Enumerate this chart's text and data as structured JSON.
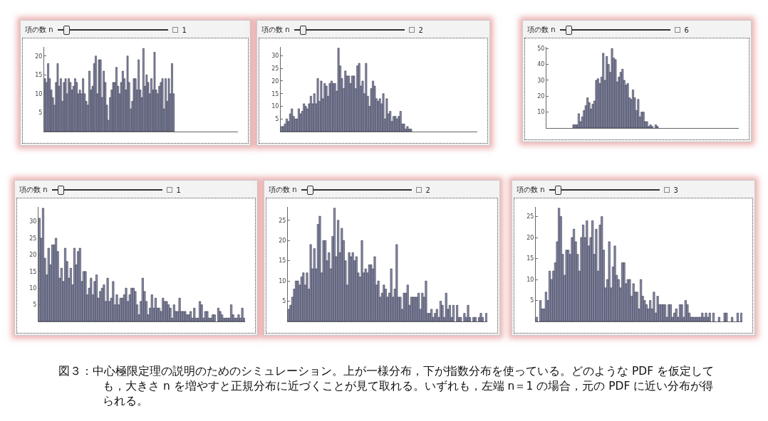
{
  "chart_data": [
    {
      "type": "bar",
      "title": "項の数 n",
      "annotations": [
        "1"
      ],
      "categories": [
        null,
        null,
        null,
        null,
        null,
        null,
        null,
        null,
        null,
        null,
        null,
        null,
        null,
        null,
        null,
        null,
        null,
        null,
        null,
        null,
        null,
        null,
        null,
        null,
        null,
        null,
        null,
        null,
        null,
        null,
        null,
        null,
        null,
        null,
        null,
        null,
        null,
        null,
        null,
        null,
        null,
        null,
        null,
        null,
        null,
        null,
        null,
        null,
        null,
        null,
        null,
        null,
        null,
        null,
        null,
        null,
        null,
        null,
        null,
        null,
        null,
        null,
        null,
        null,
        null,
        null,
        null,
        null,
        null,
        null,
        null,
        null,
        null,
        null,
        null,
        null,
        null,
        null,
        null,
        null,
        null,
        null,
        null,
        null,
        null,
        null,
        null,
        null,
        null,
        null,
        null,
        null,
        null,
        null,
        null,
        null,
        null,
        null,
        null,
        null,
        null,
        null,
        null,
        null,
        null,
        null,
        null,
        null,
        null,
        null,
        null,
        null,
        null,
        null,
        null,
        null,
        null,
        null,
        null,
        null,
        null,
        null
      ],
      "values": [
        14,
        13,
        18,
        14,
        11,
        9,
        7,
        13,
        18,
        12,
        14,
        8,
        13,
        14,
        10,
        14,
        13,
        11,
        12,
        14,
        13,
        10,
        11,
        10,
        14,
        10,
        8,
        7,
        16,
        11,
        12,
        18,
        20,
        10,
        19,
        19,
        9,
        16,
        13,
        7,
        3,
        9,
        11,
        13,
        13,
        17,
        12,
        10,
        13,
        16,
        14,
        11,
        20,
        13,
        6,
        8,
        14,
        14,
        11,
        19,
        11,
        9,
        22,
        12,
        15,
        13,
        10,
        14,
        11,
        21,
        11,
        10,
        12,
        13,
        14,
        6,
        14,
        8,
        14,
        10,
        18,
        10,
        null,
        null,
        null,
        null,
        null,
        null,
        null,
        null,
        null,
        null,
        null,
        null,
        null,
        null,
        null,
        null,
        null,
        null,
        null,
        null,
        null,
        null,
        null,
        null,
        null,
        null,
        null,
        null,
        null,
        null,
        null,
        null,
        null,
        null,
        null,
        null,
        null,
        null,
        null,
        null
      ],
      "color": "#8c90ae",
      "ylim": [
        0,
        22.4
      ],
      "yticks": [
        5,
        10,
        15,
        20
      ],
      "tick_labels": "y",
      "grid": false
    },
    {
      "type": "bar",
      "title": "項の数 n",
      "annotations": [
        "2"
      ],
      "categories": [
        null,
        null,
        null,
        null,
        null,
        null,
        null,
        null,
        null,
        null,
        null,
        null,
        null,
        null,
        null,
        null,
        null,
        null,
        null,
        null,
        null,
        null,
        null,
        null,
        null,
        null,
        null,
        null,
        null,
        null,
        null,
        null,
        null,
        null,
        null,
        null,
        null,
        null,
        null,
        null,
        null,
        null,
        null,
        null,
        null,
        null,
        null,
        null,
        null,
        null,
        null,
        null,
        null,
        null,
        null,
        null,
        null,
        null,
        null,
        null,
        null,
        null,
        null,
        null,
        null,
        null,
        null,
        null,
        null,
        null,
        null,
        null,
        null,
        null,
        null,
        null,
        null,
        null,
        null,
        null,
        null,
        null,
        null,
        null,
        null,
        null,
        null,
        null,
        null,
        null,
        null,
        null,
        null,
        null,
        null,
        null,
        null,
        null,
        null,
        null,
        null,
        null,
        null,
        null,
        null,
        null,
        null,
        null,
        null,
        null,
        null,
        null,
        null,
        null
      ],
      "values": [
        2,
        2,
        3,
        5,
        4,
        7,
        9,
        6,
        5,
        5,
        9,
        7,
        8,
        11,
        10,
        9,
        11,
        14,
        11,
        15,
        11,
        21,
        12,
        20,
        13,
        19,
        18,
        14,
        19,
        20,
        19,
        19,
        16,
        33,
        26,
        21,
        17,
        24,
        22,
        22,
        19,
        22,
        22,
        17,
        26,
        27,
        18,
        20,
        15,
        27,
        14,
        10,
        17,
        20,
        18,
        13,
        12,
        13,
        11,
        15,
        5,
        13,
        7,
        8,
        4,
        6,
        6,
        5,
        6,
        8,
        3,
        3,
        1,
        2,
        1,
        1,
        null,
        null,
        null,
        null,
        null,
        null,
        null,
        null,
        null,
        null,
        null,
        null,
        null,
        null,
        null,
        null,
        null,
        null,
        null,
        null,
        null,
        null,
        null,
        null,
        null,
        null,
        null,
        null,
        null,
        null,
        null,
        null,
        null,
        null,
        null,
        null,
        null,
        null
      ],
      "color": "#8c90ae",
      "ylim": [
        0,
        33.5
      ],
      "yticks": [
        5,
        10,
        15,
        20,
        25,
        30
      ],
      "tick_labels": "y",
      "grid": false
    },
    {
      "type": "bar",
      "title": "項の数 n",
      "annotations": [
        "6"
      ],
      "categories": [
        null,
        null,
        null,
        null,
        null,
        null,
        null,
        null,
        null,
        null,
        null,
        null,
        null,
        null,
        null,
        null,
        null,
        null,
        null,
        null,
        null,
        null,
        null,
        null,
        null,
        null,
        null,
        null,
        null,
        null,
        null,
        null,
        null,
        null,
        null,
        null,
        null,
        null,
        null,
        null,
        null,
        null,
        null,
        null,
        null,
        null,
        null,
        null,
        null,
        null,
        null,
        null,
        null,
        null,
        null,
        null,
        null,
        null,
        null,
        null,
        null,
        null,
        null,
        null,
        null,
        null,
        null,
        null,
        null,
        null,
        null,
        null,
        null,
        null,
        null,
        null,
        null,
        null,
        null,
        null,
        null,
        null,
        null,
        null,
        null,
        null,
        null,
        null,
        null,
        null,
        null,
        null,
        null,
        null,
        null,
        null,
        null,
        null,
        null,
        null,
        null,
        null,
        null,
        null,
        null,
        null,
        null,
        null,
        null,
        null
      ],
      "values": [
        null,
        null,
        null,
        null,
        null,
        null,
        null,
        null,
        null,
        null,
        null,
        null,
        null,
        null,
        null,
        2,
        2,
        2,
        9,
        4,
        7,
        11,
        14,
        19,
        16,
        12,
        15,
        17,
        30,
        31,
        28,
        32,
        47,
        30,
        45,
        40,
        35,
        50,
        44,
        43,
        29,
        32,
        35,
        37,
        30,
        27,
        28,
        19,
        18,
        24,
        19,
        11,
        18,
        7,
        10,
        10,
        4,
        4,
        1,
        2,
        1,
        0,
        2,
        1,
        null,
        null,
        null,
        null,
        null,
        null,
        null,
        null,
        null,
        null,
        null,
        null,
        null,
        null,
        null,
        null,
        null,
        null,
        null,
        null,
        null,
        null,
        null,
        null,
        null,
        null,
        null,
        null,
        null,
        null,
        null,
        null,
        null,
        null,
        null,
        null,
        null,
        null,
        null,
        null,
        null,
        null,
        null,
        null,
        null,
        null
      ],
      "color": "#8c90ae",
      "ylim": [
        0,
        51
      ],
      "yticks": [
        10,
        20,
        30,
        40,
        50
      ],
      "tick_labels": "y",
      "grid": false
    },
    {
      "type": "bar",
      "title": "項の数 n",
      "annotations": [
        "1"
      ],
      "categories": [
        null,
        null,
        null,
        null,
        null,
        null,
        null,
        null,
        null,
        null,
        null,
        null,
        null,
        null,
        null,
        null,
        null,
        null,
        null,
        null,
        null,
        null,
        null,
        null,
        null,
        null,
        null,
        null,
        null,
        null,
        null,
        null,
        null,
        null,
        null,
        null,
        null,
        null,
        null,
        null,
        null,
        null,
        null,
        null,
        null,
        null,
        null,
        null,
        null,
        null,
        null,
        null,
        null,
        null,
        null,
        null,
        null,
        null,
        null,
        null,
        null,
        null,
        null,
        null,
        null,
        null,
        null,
        null,
        null,
        null,
        null,
        null,
        null,
        null,
        null,
        null,
        null,
        null,
        null,
        null,
        null,
        null,
        null,
        null,
        null,
        null,
        null,
        null,
        null,
        null,
        null,
        null,
        null,
        null,
        null,
        null,
        null,
        null,
        null,
        null,
        null,
        null,
        null,
        null,
        null,
        null,
        null,
        null,
        null,
        null,
        null,
        null
      ],
      "values": [
        31,
        25,
        34,
        19,
        14,
        22,
        17,
        23,
        23,
        25,
        21,
        13,
        16,
        12,
        22,
        18,
        13,
        16,
        11,
        22,
        17,
        21,
        22,
        12,
        15,
        15,
        8,
        10,
        13,
        8,
        12,
        14,
        7,
        9,
        10,
        11,
        6,
        13,
        6,
        7,
        12,
        5,
        8,
        5,
        7,
        7,
        8,
        10,
        6,
        8,
        10,
        10,
        9,
        5,
        2,
        6,
        13,
        9,
        6,
        2,
        4,
        8,
        4,
        7,
        4,
        4,
        3,
        7,
        6,
        6,
        5,
        4,
        1,
        5,
        3,
        3,
        7,
        3,
        3,
        3,
        2,
        2,
        3,
        1,
        4,
        1,
        1,
        6,
        5,
        1,
        3,
        3,
        1,
        1,
        2,
        2,
        0,
        4,
        3,
        2,
        1,
        1,
        1,
        1,
        5,
        2,
        1,
        1,
        2,
        1,
        4,
        1
      ],
      "color": "#8c90ae",
      "ylim": [
        0,
        34.4
      ],
      "yticks": [
        5,
        10,
        15,
        20,
        25,
        30
      ],
      "tick_labels": "y",
      "grid": false
    },
    {
      "type": "bar",
      "title": "項の数 n",
      "annotations": [
        "2"
      ],
      "categories": [
        null,
        null,
        null,
        null,
        null,
        null,
        null,
        null,
        null,
        null,
        null,
        null,
        null,
        null,
        null,
        null,
        null,
        null,
        null,
        null,
        null,
        null,
        null,
        null,
        null,
        null,
        null,
        null,
        null,
        null,
        null,
        null,
        null,
        null,
        null,
        null,
        null,
        null,
        null,
        null,
        null,
        null,
        null,
        null,
        null,
        null,
        null,
        null,
        null,
        null,
        null,
        null,
        null,
        null,
        null,
        null,
        null,
        null,
        null,
        null,
        null,
        null,
        null,
        null,
        null,
        null,
        null,
        null,
        null,
        null,
        null,
        null,
        null,
        null,
        null,
        null,
        null,
        null,
        null,
        null,
        null,
        null,
        null,
        null,
        null,
        null,
        null,
        null,
        null,
        null,
        null,
        null,
        null,
        null,
        null,
        null,
        null,
        null,
        null,
        null,
        null,
        null,
        null,
        null,
        null,
        null,
        null,
        null,
        null
      ],
      "values": [
        3,
        4,
        6,
        8,
        10,
        10,
        9,
        11,
        12,
        9,
        12,
        8,
        19,
        13,
        18,
        13,
        24,
        26,
        12,
        20,
        20,
        15,
        17,
        13,
        21,
        28,
        16,
        25,
        17,
        23,
        20,
        15,
        9,
        17,
        16,
        17,
        15,
        16,
        12,
        11,
        20,
        12,
        13,
        12,
        14,
        14,
        13,
        16,
        9,
        10,
        6,
        7,
        9,
        8,
        6,
        7,
        13,
        6,
        8,
        19,
        6,
        6,
        3,
        7,
        7,
        9,
        4,
        6,
        6,
        6,
        6,
        7,
        3,
        7,
        6,
        10,
        2,
        2,
        3,
        1,
        2,
        3,
        1,
        5,
        4,
        1,
        7,
        3,
        4,
        1,
        4,
        0,
        4,
        1,
        1,
        0,
        2,
        1,
        4,
        1,
        0,
        1,
        1,
        0,
        1,
        2,
        1,
        0,
        2
      ],
      "color": "#8c90ae",
      "ylim": [
        0,
        28.3
      ],
      "yticks": [
        5,
        10,
        15,
        20,
        25
      ],
      "tick_labels": "y",
      "grid": false
    },
    {
      "type": "bar",
      "title": "項の数 n",
      "annotations": [
        "3",
        "図３：中心極限定理の説明のためのシミュレーション。上が一様分布，下が指数分布を使っている。どのような PDF を仮定しても，大きさ n を増やすと正規分布に近づくことが見て取れる。いずれも，左端 n＝1 の場合，元の PDF に近い分布が得られる。"
      ],
      "categories": [
        null,
        null,
        null,
        null,
        null,
        null,
        null,
        null,
        null,
        null,
        null,
        null,
        null,
        null,
        null,
        null,
        null,
        null,
        null,
        null,
        null,
        null,
        null,
        null,
        null,
        null,
        null,
        null,
        null,
        null,
        null,
        null,
        null,
        null,
        null,
        null,
        null,
        null,
        null,
        null,
        null,
        null,
        null,
        null,
        null,
        null,
        null,
        null,
        null,
        null,
        null,
        null,
        null,
        null,
        null,
        null,
        null,
        null,
        null,
        null,
        null,
        null,
        null,
        null,
        null,
        null,
        null,
        null,
        null,
        null,
        null,
        null,
        null,
        null,
        null,
        null,
        null,
        null,
        null,
        null,
        null,
        null,
        null,
        null,
        null,
        null,
        null,
        null,
        null,
        null,
        null,
        null,
        null,
        null,
        null,
        null,
        null,
        null,
        null,
        null,
        null,
        null,
        null,
        null,
        null,
        null,
        null,
        null,
        null,
        null,
        null
      ],
      "values": [
        1,
        0,
        5,
        3,
        3,
        7,
        5,
        12,
        10,
        12,
        14,
        19,
        27,
        25,
        16,
        11,
        17,
        17,
        16,
        20,
        22,
        19,
        16,
        12,
        20,
        23,
        20,
        24,
        18,
        20,
        24,
        16,
        22,
        12,
        23,
        25,
        17,
        8,
        10,
        19,
        8,
        13,
        18,
        11,
        10,
        8,
        14,
        14,
        9,
        10,
        10,
        6,
        9,
        7,
        7,
        3,
        10,
        6,
        5,
        4,
        3,
        5,
        3,
        7,
        2,
        6,
        4,
        4,
        4,
        4,
        1,
        4,
        4,
        1,
        2,
        3,
        1,
        4,
        4,
        1,
        5,
        4,
        2,
        1,
        1,
        1,
        1,
        1,
        1,
        2,
        1,
        2,
        1,
        2,
        0,
        2,
        0,
        0,
        1,
        0,
        0,
        2,
        2,
        0,
        0,
        1,
        0,
        0,
        2,
        0,
        2
      ],
      "color": "#8c90ae",
      "ylim": [
        0,
        27.3
      ],
      "yticks": [
        5,
        10,
        15,
        20,
        25
      ],
      "tick_labels": "y",
      "grid": false
    }
  ]
}
